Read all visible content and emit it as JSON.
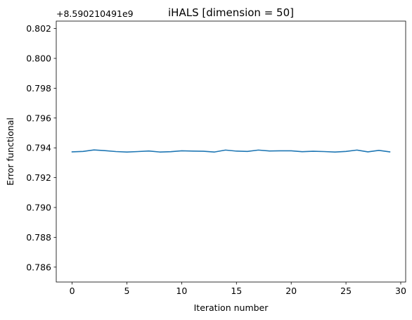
{
  "chart_data": {
    "type": "line",
    "title": "iHALS [dimension = 50]",
    "xlabel": "Iteration number",
    "ylabel": "Error functional",
    "offset_text": "+8.590210491e9",
    "xlim": [
      -1.45,
      30.45
    ],
    "ylim": [
      0.785,
      0.8025
    ],
    "xticks": [
      0,
      5,
      10,
      15,
      20,
      25,
      30
    ],
    "xtick_labels": [
      "0",
      "5",
      "10",
      "15",
      "20",
      "25",
      "30"
    ],
    "yticks": [
      0.786,
      0.788,
      0.79,
      0.792,
      0.794,
      0.796,
      0.798,
      0.8,
      0.802
    ],
    "ytick_labels": [
      "0.786",
      "0.788",
      "0.790",
      "0.792",
      "0.794",
      "0.796",
      "0.798",
      "0.800",
      "0.802"
    ],
    "grid": false,
    "series": [
      {
        "color": "#1f77b4",
        "x": [
          0,
          1,
          2,
          3,
          4,
          5,
          6,
          7,
          8,
          9,
          10,
          11,
          12,
          13,
          14,
          15,
          16,
          17,
          18,
          19,
          20,
          21,
          22,
          23,
          24,
          25,
          26,
          27,
          28,
          29
        ],
        "y": [
          0.79373,
          0.79376,
          0.79386,
          0.79381,
          0.79375,
          0.79372,
          0.79375,
          0.79379,
          0.79372,
          0.79374,
          0.7938,
          0.79378,
          0.79377,
          0.79372,
          0.79385,
          0.79378,
          0.79376,
          0.79385,
          0.79379,
          0.7938,
          0.7938,
          0.79374,
          0.79377,
          0.79375,
          0.79372,
          0.79376,
          0.79385,
          0.79373,
          0.79383,
          0.79373
        ]
      }
    ]
  }
}
